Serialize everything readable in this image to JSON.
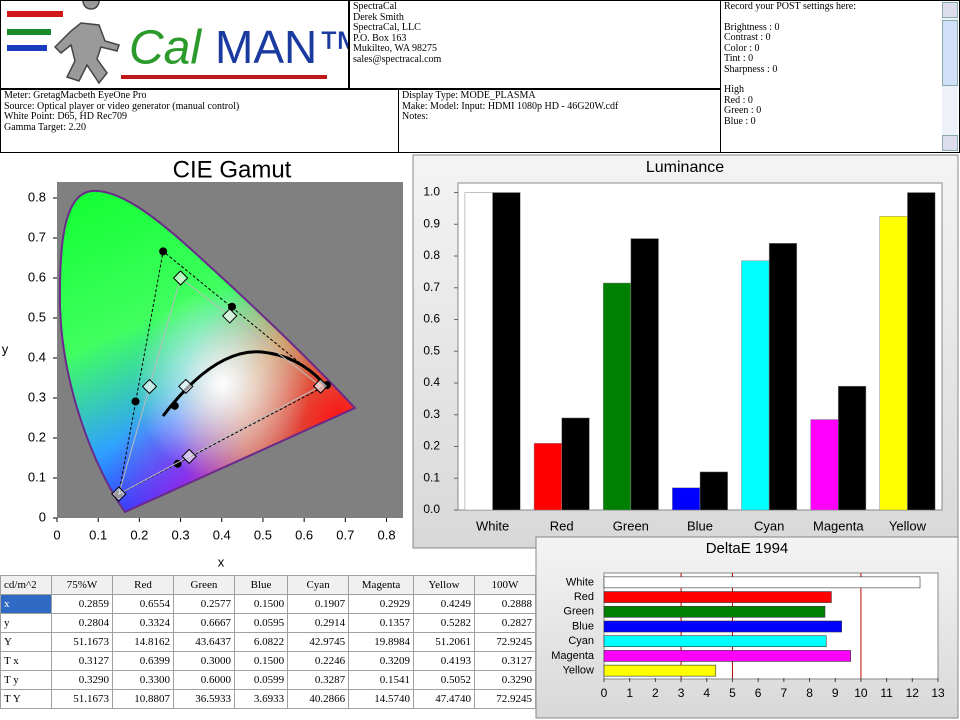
{
  "header": {
    "logo": {
      "cal": "Cal",
      "man": "MAN™"
    },
    "contact": [
      "SpectraCal",
      "Derek Smith",
      "SpectraCal, LLC",
      "P.O. Box 163",
      "Mukilteo, WA 98275",
      "sales@spectracal.com"
    ],
    "post": {
      "title": "Record your POST settings here:",
      "settings": [
        "Brightness  : 0",
        "Contrast    : 0",
        "Color        : 0",
        "Tint          : 0",
        "Sharpness : 0"
      ],
      "high_title": "High",
      "high": [
        "Red     : 0",
        "Green  : 0",
        "Blue    : 0"
      ]
    },
    "meter": [
      "Meter: GretagMacbeth EyeOne Pro",
      "Source: Optical player or video generator (manual control)",
      "White Point: D65, HD Rec709",
      "Gamma Target: 2.20"
    ],
    "display": [
      "Display Type: MODE_PLASMA",
      "Make: Model: Input: HDMI 1080p HD     -     46G20W.cdf",
      "Notes:"
    ]
  },
  "chart_data": [
    {
      "type": "gamut",
      "title": "CIE Gamut",
      "x_label": "x",
      "y_label": "y",
      "xlim": [
        0,
        0.84
      ],
      "ylim": [
        0,
        0.84
      ],
      "xticks": [
        0,
        0.1,
        0.2,
        0.3,
        0.4,
        0.5,
        0.6,
        0.7,
        0.8
      ],
      "yticks": [
        0,
        0.1,
        0.2,
        0.3,
        0.4,
        0.5,
        0.6,
        0.7,
        0.8
      ],
      "series": [
        {
          "marker": "circle",
          "color": "#000000",
          "x": [
            0.2859,
            0.6554,
            0.2577,
            0.15,
            0.1907,
            0.2929,
            0.4249
          ],
          "y": [
            0.2804,
            0.3324,
            0.6667,
            0.0595,
            0.2914,
            0.1357,
            0.5282
          ]
        },
        {
          "marker": "diamond",
          "color": "#ffffff",
          "x": [
            0.3127,
            0.6399,
            0.3,
            0.15,
            0.2246,
            0.3209,
            0.4193
          ],
          "y": [
            0.329,
            0.33,
            0.6,
            0.0599,
            0.3287,
            0.1541,
            0.5052
          ]
        }
      ]
    },
    {
      "type": "bar",
      "title": "Luminance",
      "categories": [
        "White",
        "Red",
        "Green",
        "Blue",
        "Cyan",
        "Magenta",
        "Yellow"
      ],
      "ylim": [
        0,
        1.03
      ],
      "yticks": [
        {
          "value": 0,
          "label": "0.0"
        },
        0.1,
        0.2,
        0.3,
        0.4,
        0.5,
        0.6,
        0.7,
        0.8,
        0.9,
        {
          "value": 1,
          "label": "1.0"
        }
      ],
      "series": [
        {
          "colors": [
            "#ffffff",
            "#ff0000",
            "#008000",
            "#0000ff",
            "#00ffff",
            "#ff00ff",
            "#ffff00"
          ],
          "values": [
            1.0,
            0.21,
            0.715,
            0.07,
            0.785,
            0.285,
            0.925
          ]
        },
        {
          "colors": [
            "#000000",
            "#000000",
            "#000000",
            "#000000",
            "#000000",
            "#000000",
            "#000000"
          ],
          "values": [
            1.0,
            0.29,
            0.855,
            0.12,
            0.84,
            0.39,
            1.0
          ]
        }
      ]
    },
    {
      "type": "hbar",
      "title": "DeltaE 1994",
      "categories": [
        "White",
        "Red",
        "Green",
        "Blue",
        "Cyan",
        "Magenta",
        "Yellow"
      ],
      "values": [
        12.3,
        8.85,
        8.6,
        9.25,
        8.65,
        9.6,
        4.35
      ],
      "colors": [
        "#ffffff",
        "#ff0000",
        "#008000",
        "#0000ff",
        "#00ffff",
        "#ff00ff",
        "#ffff00"
      ],
      "xlim": [
        0,
        13
      ],
      "xticks": [
        0,
        1,
        2,
        3,
        4,
        5,
        6,
        7,
        8,
        9,
        10,
        11,
        12,
        13
      ],
      "reference_lines": [
        3,
        5,
        10
      ],
      "reference_color": "#c00000"
    }
  ],
  "table": {
    "header": [
      "cd/m^2",
      "75%W",
      "Red",
      "Green",
      "Blue",
      "Cyan",
      "Magenta",
      "Yellow",
      "100W"
    ],
    "rows": [
      [
        "x",
        "0.2859",
        "0.6554",
        "0.2577",
        "0.1500",
        "0.1907",
        "0.2929",
        "0.4249",
        "0.2888"
      ],
      [
        "y",
        "0.2804",
        "0.3324",
        "0.6667",
        "0.0595",
        "0.2914",
        "0.1357",
        "0.5282",
        "0.2827"
      ],
      [
        "Y",
        "51.1673",
        "14.8162",
        "43.6437",
        "6.0822",
        "42.9745",
        "19.8984",
        "51.2061",
        "72.9245"
      ],
      [
        "T x",
        "0.3127",
        "0.6399",
        "0.3000",
        "0.1500",
        "0.2246",
        "0.3209",
        "0.4193",
        "0.3127"
      ],
      [
        "T y",
        "0.3290",
        "0.3300",
        "0.6000",
        "0.0599",
        "0.3287",
        "0.1541",
        "0.5052",
        "0.3290"
      ],
      [
        "T Y",
        "51.1673",
        "10.8807",
        "36.5933",
        "3.6933",
        "40.2866",
        "14.5740",
        "47.4740",
        "72.9245"
      ]
    ]
  }
}
